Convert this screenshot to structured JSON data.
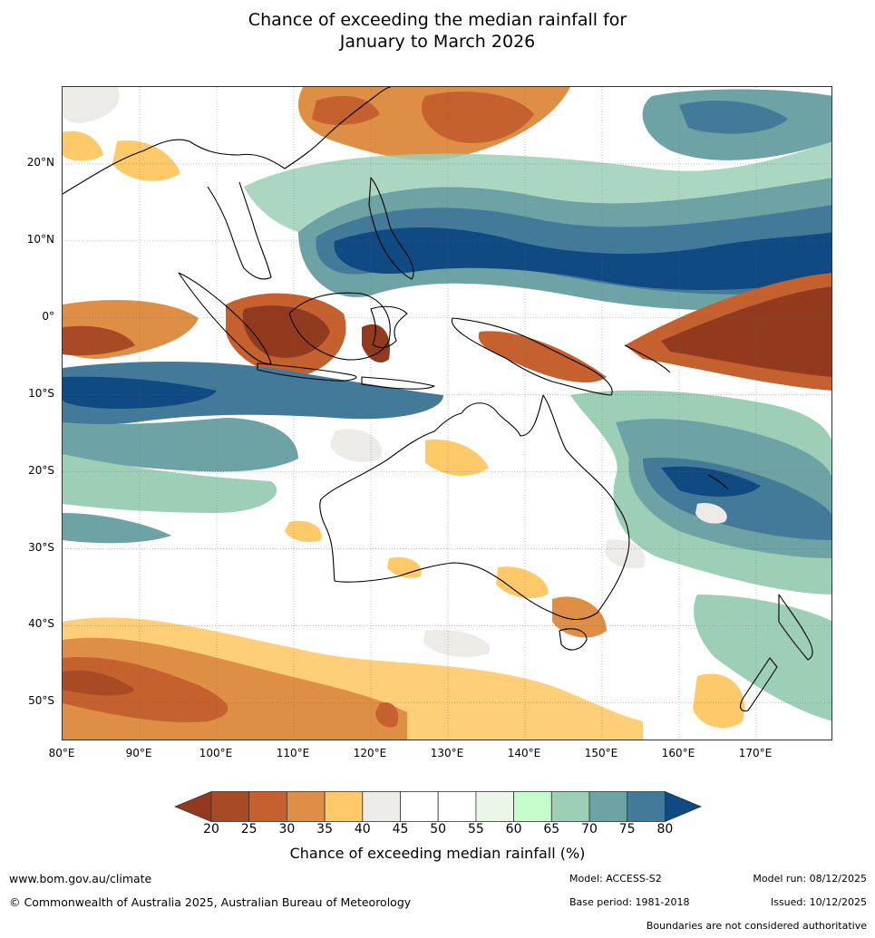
{
  "title": {
    "line1": "Chance of exceeding the median rainfall for",
    "line2": "January to March 2026"
  },
  "map": {
    "lat_labels": [
      "20°N",
      "10°N",
      "0°",
      "10°S",
      "20°S",
      "30°S",
      "40°S",
      "50°S"
    ],
    "lon_labels": [
      "80°E",
      "90°E",
      "100°E",
      "110°E",
      "120°E",
      "130°E",
      "140°E",
      "150°E",
      "160°E",
      "170°E"
    ],
    "lon_range": [
      80,
      180
    ],
    "lat_range": [
      -55,
      30
    ]
  },
  "colorbar": {
    "ticks": [
      "20",
      "25",
      "30",
      "35",
      "40",
      "45",
      "50",
      "55",
      "60",
      "65",
      "70",
      "75",
      "80"
    ],
    "colors": [
      "#a84a26",
      "#c5612f",
      "#df8f45",
      "#fec969",
      "#edebe7",
      "#ffffff",
      "#ffffff",
      "#e9f6e8",
      "#c5fccb",
      "#9ccfb6",
      "#6ea3a5",
      "#437a9a"
    ],
    "low_color": "#93391e",
    "high_color": "#0f4a82",
    "label": "Chance of exceeding median rainfall (%)"
  },
  "footer": {
    "url": "www.bom.gov.au/climate",
    "copyright": "© Commonwealth of Australia 2025, Australian Bureau of Meteorology",
    "model": "Model: ACCESS-S2",
    "base_period": "Base period: 1981-2018",
    "model_run": "Model run: 08/12/2025",
    "issued": "Issued: 10/12/2025",
    "disclaimer": "Boundaries are not considered authoritative"
  }
}
